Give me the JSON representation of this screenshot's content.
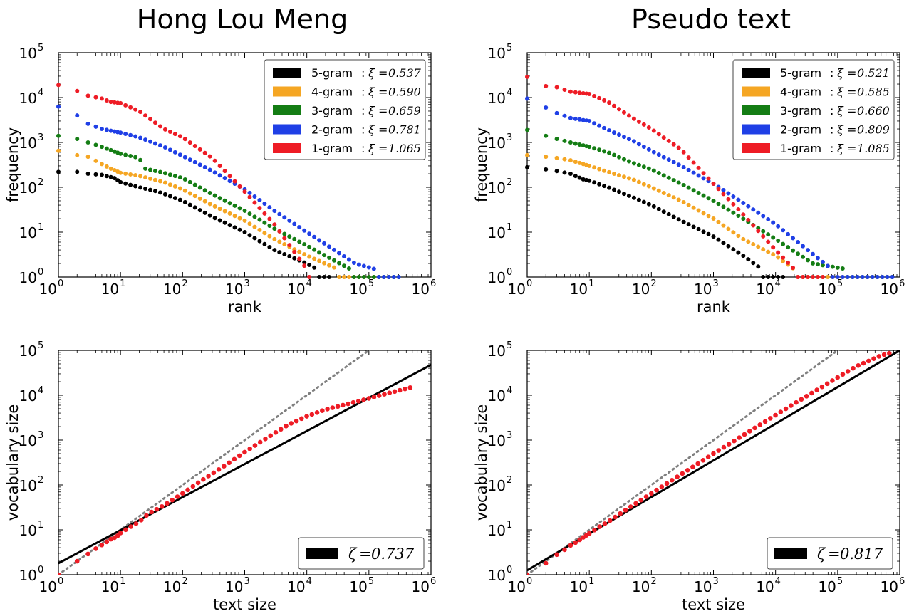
{
  "colors": {
    "five_gram": "#000000",
    "four_gram": "#f5a623",
    "three_gram": "#147d14",
    "two_gram": "#1f3fe6",
    "one_gram": "#ee1c25",
    "heaps_points": "#ee1c25",
    "fit_line": "#000000",
    "reference_line": "#808080"
  },
  "titles": [
    "Hong Lou Meng",
    "Pseudo text"
  ],
  "chart_data": [
    {
      "type": "scatter",
      "title": "Hong Lou Meng",
      "xlabel": "rank",
      "ylabel": "frequency",
      "xscale": "log",
      "yscale": "log",
      "xlim": [
        1,
        1000000
      ],
      "ylim": [
        1,
        100000
      ],
      "x_ticks": [
        {
          "base": "10",
          "exp": "0"
        },
        {
          "base": "10",
          "exp": "1"
        },
        {
          "base": "10",
          "exp": "2"
        },
        {
          "base": "10",
          "exp": "3"
        },
        {
          "base": "10",
          "exp": "4"
        },
        {
          "base": "10",
          "exp": "5"
        },
        {
          "base": "10",
          "exp": "6"
        }
      ],
      "y_ticks": [
        {
          "base": "10",
          "exp": "0"
        },
        {
          "base": "10",
          "exp": "1"
        },
        {
          "base": "10",
          "exp": "2"
        },
        {
          "base": "10",
          "exp": "3"
        },
        {
          "base": "10",
          "exp": "4"
        },
        {
          "base": "10",
          "exp": "5"
        }
      ],
      "legend_position": "top-right",
      "series": [
        {
          "name": "5-gram",
          "symbol": "ξ",
          "value": "0.537",
          "rank_max": 25000,
          "head": [
            [
              1,
              220
            ],
            [
              2,
              220
            ],
            [
              3,
              200
            ],
            [
              5,
              190
            ],
            [
              8,
              160
            ],
            [
              10,
              130
            ],
            [
              20,
              100
            ],
            [
              40,
              80
            ],
            [
              100,
              50
            ],
            [
              300,
              22
            ],
            [
              1000,
              10
            ],
            [
              3000,
              4
            ],
            [
              10000,
              2
            ],
            [
              25000,
              1
            ]
          ]
        },
        {
          "name": "4-gram",
          "symbol": "ξ",
          "value": "0.590",
          "rank_max": 350000,
          "head": [
            [
              1,
              650
            ],
            [
              2,
              520
            ],
            [
              3,
              480
            ],
            [
              5,
              330
            ],
            [
              7,
              260
            ],
            [
              10,
              210
            ],
            [
              20,
              180
            ],
            [
              50,
              130
            ],
            [
              100,
              90
            ],
            [
              300,
              40
            ],
            [
              1000,
              18
            ],
            [
              3000,
              7
            ],
            [
              10000,
              3
            ],
            [
              40000,
              1.3
            ],
            [
              350000,
              1
            ]
          ]
        },
        {
          "name": "3-gram",
          "symbol": "ξ",
          "value": "0.659",
          "rank_max": 350000,
          "head": [
            [
              1,
              1400
            ],
            [
              2,
              1200
            ],
            [
              3,
              1000
            ],
            [
              5,
              800
            ],
            [
              10,
              560
            ],
            [
              20,
              450
            ],
            [
              25,
              260
            ],
            [
              50,
              210
            ],
            [
              100,
              160
            ],
            [
              300,
              70
            ],
            [
              1000,
              30
            ],
            [
              3000,
              12
            ],
            [
              10000,
              5
            ],
            [
              50000,
              1.5
            ],
            [
              350000,
              1
            ]
          ]
        },
        {
          "name": "2-gram",
          "symbol": "ξ",
          "value": "0.781",
          "rank_max": 350000,
          "head": [
            [
              1,
              6300
            ],
            [
              2,
              4000
            ],
            [
              3,
              2600
            ],
            [
              5,
              2000
            ],
            [
              10,
              1650
            ],
            [
              20,
              1300
            ],
            [
              50,
              800
            ],
            [
              100,
              500
            ],
            [
              300,
              230
            ],
            [
              1000,
              90
            ],
            [
              3000,
              30
            ],
            [
              10000,
              10
            ],
            [
              60000,
              2
            ],
            [
              350000,
              1
            ]
          ]
        },
        {
          "name": "1-gram",
          "symbol": "ξ",
          "value": "1.065",
          "rank_max": 12000,
          "head": [
            [
              1,
              19000
            ],
            [
              2,
              14000
            ],
            [
              3,
              11000
            ],
            [
              5,
              9500
            ],
            [
              7,
              8000
            ],
            [
              10,
              7500
            ],
            [
              20,
              5000
            ],
            [
              50,
              2000
            ],
            [
              100,
              1300
            ],
            [
              300,
              450
            ],
            [
              1000,
              80
            ],
            [
              3000,
              15
            ],
            [
              10000,
              1.5
            ],
            [
              12000,
              1
            ]
          ]
        }
      ]
    },
    {
      "type": "scatter",
      "title": "Pseudo text",
      "xlabel": "rank",
      "ylabel": "frequency",
      "xscale": "log",
      "yscale": "log",
      "xlim": [
        1,
        1000000
      ],
      "ylim": [
        1,
        100000
      ],
      "x_ticks": [
        {
          "base": "10",
          "exp": "0"
        },
        {
          "base": "10",
          "exp": "1"
        },
        {
          "base": "10",
          "exp": "2"
        },
        {
          "base": "10",
          "exp": "3"
        },
        {
          "base": "10",
          "exp": "4"
        },
        {
          "base": "10",
          "exp": "5"
        },
        {
          "base": "10",
          "exp": "6"
        }
      ],
      "y_ticks": [
        {
          "base": "10",
          "exp": "0"
        },
        {
          "base": "10",
          "exp": "1"
        },
        {
          "base": "10",
          "exp": "2"
        },
        {
          "base": "10",
          "exp": "3"
        },
        {
          "base": "10",
          "exp": "4"
        },
        {
          "base": "10",
          "exp": "5"
        }
      ],
      "legend_position": "top-right",
      "series": [
        {
          "name": "5-gram",
          "symbol": "ξ",
          "value": "0.521",
          "rank_max": 15000,
          "head": [
            [
              1,
              280
            ],
            [
              2,
              250
            ],
            [
              3,
              230
            ],
            [
              5,
              200
            ],
            [
              8,
              150
            ],
            [
              10,
              140
            ],
            [
              20,
              100
            ],
            [
              50,
              60
            ],
            [
              100,
              40
            ],
            [
              300,
              18
            ],
            [
              1000,
              8
            ],
            [
              3000,
              3
            ],
            [
              6000,
              1.5
            ],
            [
              15000,
              1
            ]
          ]
        },
        {
          "name": "4-gram",
          "symbol": "ξ",
          "value": "0.585",
          "rank_max": 800000,
          "head": [
            [
              1,
              520
            ],
            [
              2,
              480
            ],
            [
              3,
              450
            ],
            [
              5,
              400
            ],
            [
              10,
              300
            ],
            [
              20,
              220
            ],
            [
              50,
              150
            ],
            [
              100,
              100
            ],
            [
              300,
              50
            ],
            [
              1000,
              20
            ],
            [
              3000,
              7
            ],
            [
              10000,
              3
            ],
            [
              20000,
              1.5
            ],
            [
              800000,
              1
            ]
          ]
        },
        {
          "name": "3-gram",
          "symbol": "ξ",
          "value": "0.660",
          "rank_max": 800000,
          "head": [
            [
              1,
              1900
            ],
            [
              2,
              1400
            ],
            [
              3,
              1200
            ],
            [
              5,
              1000
            ],
            [
              10,
              800
            ],
            [
              20,
              600
            ],
            [
              50,
              350
            ],
            [
              100,
              250
            ],
            [
              300,
              120
            ],
            [
              1000,
              50
            ],
            [
              3000,
              20
            ],
            [
              10000,
              7
            ],
            [
              40000,
              2
            ],
            [
              800000,
              1
            ]
          ]
        },
        {
          "name": "2-gram",
          "symbol": "ξ",
          "value": "0.809",
          "rank_max": 800000,
          "head": [
            [
              1,
              9500
            ],
            [
              2,
              6000
            ],
            [
              3,
              4500
            ],
            [
              5,
              3500
            ],
            [
              10,
              3000
            ],
            [
              20,
              1900
            ],
            [
              50,
              1100
            ],
            [
              100,
              650
            ],
            [
              300,
              300
            ],
            [
              1000,
              120
            ],
            [
              3000,
              45
            ],
            [
              10000,
              15
            ],
            [
              80000,
              1.5
            ],
            [
              800000,
              1
            ]
          ]
        },
        {
          "name": "1-gram",
          "symbol": "ξ",
          "value": "1.085",
          "rank_max": 60000,
          "head": [
            [
              1,
              29000
            ],
            [
              2,
              18000
            ],
            [
              3,
              17000
            ],
            [
              5,
              13500
            ],
            [
              10,
              12000
            ],
            [
              20,
              8000
            ],
            [
              50,
              3500
            ],
            [
              100,
              2000
            ],
            [
              300,
              700
            ],
            [
              1000,
              120
            ],
            [
              3000,
              25
            ],
            [
              10000,
              4
            ],
            [
              20000,
              1.5
            ],
            [
              60000,
              1
            ]
          ]
        }
      ]
    },
    {
      "type": "scatter",
      "xlabel": "text size",
      "ylabel": "vocabulary size",
      "xscale": "log",
      "yscale": "log",
      "xlim": [
        1,
        1000000
      ],
      "ylim": [
        1,
        100000
      ],
      "x_ticks": [
        {
          "base": "10",
          "exp": "0"
        },
        {
          "base": "10",
          "exp": "1"
        },
        {
          "base": "10",
          "exp": "2"
        },
        {
          "base": "10",
          "exp": "3"
        },
        {
          "base": "10",
          "exp": "4"
        },
        {
          "base": "10",
          "exp": "5"
        },
        {
          "base": "10",
          "exp": "6"
        }
      ],
      "y_ticks": [
        {
          "base": "10",
          "exp": "0"
        },
        {
          "base": "10",
          "exp": "1"
        },
        {
          "base": "10",
          "exp": "2"
        },
        {
          "base": "10",
          "exp": "3"
        },
        {
          "base": "10",
          "exp": "4"
        },
        {
          "base": "10",
          "exp": "5"
        }
      ],
      "legend_position": "bottom-right",
      "legend": {
        "symbol": "ζ",
        "value": "0.737"
      },
      "fit_line": {
        "exponent": 0.737,
        "intercept": 1.8
      },
      "reference_line": {
        "exponent": 1,
        "intercept": 1
      },
      "points": [
        [
          1,
          1
        ],
        [
          2,
          2
        ],
        [
          3,
          2.9
        ],
        [
          4,
          3.8
        ],
        [
          5,
          4.6
        ],
        [
          6,
          5.4
        ],
        [
          7,
          6.2
        ],
        [
          8,
          6.7
        ],
        [
          9,
          7.4
        ],
        [
          10,
          8.5
        ],
        [
          12,
          10
        ],
        [
          15,
          12
        ],
        [
          20,
          15
        ],
        [
          25,
          20
        ],
        [
          30,
          24
        ],
        [
          50,
          35
        ],
        [
          100,
          65
        ],
        [
          200,
          125
        ],
        [
          500,
          280
        ],
        [
          1000,
          540
        ],
        [
          2000,
          1000
        ],
        [
          5000,
          2200
        ],
        [
          10000,
          3400
        ],
        [
          20000,
          4800
        ],
        [
          50000,
          6600
        ],
        [
          100000,
          8500
        ],
        [
          200000,
          11000
        ],
        [
          480000,
          15000
        ]
      ]
    },
    {
      "type": "scatter",
      "xlabel": "text size",
      "ylabel": "vocabulary size",
      "xscale": "log",
      "yscale": "log",
      "xlim": [
        1,
        1000000
      ],
      "ylim": [
        1,
        100000
      ],
      "x_ticks": [
        {
          "base": "10",
          "exp": "0"
        },
        {
          "base": "10",
          "exp": "1"
        },
        {
          "base": "10",
          "exp": "2"
        },
        {
          "base": "10",
          "exp": "3"
        },
        {
          "base": "10",
          "exp": "4"
        },
        {
          "base": "10",
          "exp": "5"
        },
        {
          "base": "10",
          "exp": "6"
        }
      ],
      "y_ticks": [
        {
          "base": "10",
          "exp": "0"
        },
        {
          "base": "10",
          "exp": "1"
        },
        {
          "base": "10",
          "exp": "2"
        },
        {
          "base": "10",
          "exp": "3"
        },
        {
          "base": "10",
          "exp": "4"
        },
        {
          "base": "10",
          "exp": "5"
        }
      ],
      "legend_position": "bottom-right",
      "legend": {
        "symbol": "ζ",
        "value": "0.817"
      },
      "fit_line": {
        "exponent": 0.817,
        "intercept": 1.25
      },
      "reference_line": {
        "exponent": 1,
        "intercept": 1
      },
      "points": [
        [
          1,
          1
        ],
        [
          2,
          1.8
        ],
        [
          3,
          2.8
        ],
        [
          4,
          3.6
        ],
        [
          5,
          4.5
        ],
        [
          6,
          5.2
        ],
        [
          7,
          6
        ],
        [
          8,
          6.8
        ],
        [
          10,
          8.3
        ],
        [
          15,
          12
        ],
        [
          20,
          15
        ],
        [
          30,
          22
        ],
        [
          50,
          35
        ],
        [
          100,
          65
        ],
        [
          200,
          120
        ],
        [
          500,
          270
        ],
        [
          1000,
          500
        ],
        [
          2000,
          900
        ],
        [
          5000,
          2000
        ],
        [
          10000,
          3600
        ],
        [
          20000,
          6500
        ],
        [
          50000,
          14000
        ],
        [
          100000,
          25000
        ],
        [
          200000,
          44000
        ],
        [
          500000,
          77000
        ],
        [
          800000,
          92000
        ]
      ]
    }
  ]
}
